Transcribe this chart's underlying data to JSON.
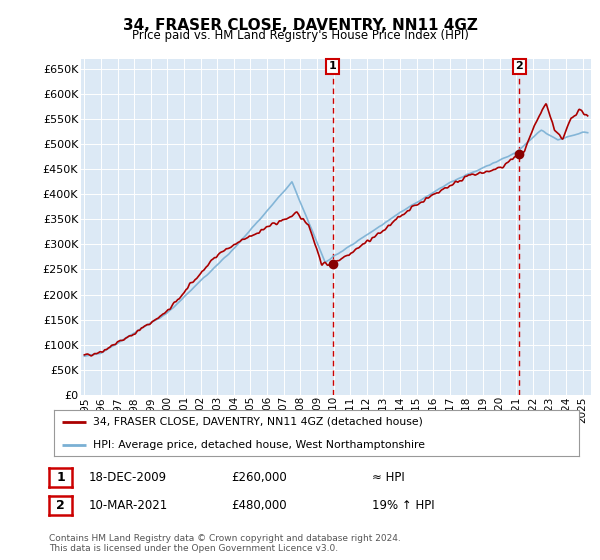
{
  "title": "34, FRASER CLOSE, DAVENTRY, NN11 4GZ",
  "subtitle": "Price paid vs. HM Land Registry's House Price Index (HPI)",
  "ylim": [
    0,
    670000
  ],
  "yticks": [
    0,
    50000,
    100000,
    150000,
    200000,
    250000,
    300000,
    350000,
    400000,
    450000,
    500000,
    550000,
    600000,
    650000
  ],
  "xlim_start": 1995.0,
  "xlim_end": 2025.5,
  "sale1_x": 2009.96,
  "sale1_y": 260000,
  "sale2_x": 2021.19,
  "sale2_y": 480000,
  "hpi_color": "#7ab0d4",
  "price_color": "#aa0000",
  "plot_bg_color": "#dce9f5",
  "legend_entry1": "34, FRASER CLOSE, DAVENTRY, NN11 4GZ (detached house)",
  "legend_entry2": "HPI: Average price, detached house, West Northamptonshire",
  "annotation1_date": "18-DEC-2009",
  "annotation1_price": "£260,000",
  "annotation1_hpi": "≈ HPI",
  "annotation2_date": "10-MAR-2021",
  "annotation2_price": "£480,000",
  "annotation2_hpi": "19% ↑ HPI",
  "footer": "Contains HM Land Registry data © Crown copyright and database right 2024.\nThis data is licensed under the Open Government Licence v3.0."
}
